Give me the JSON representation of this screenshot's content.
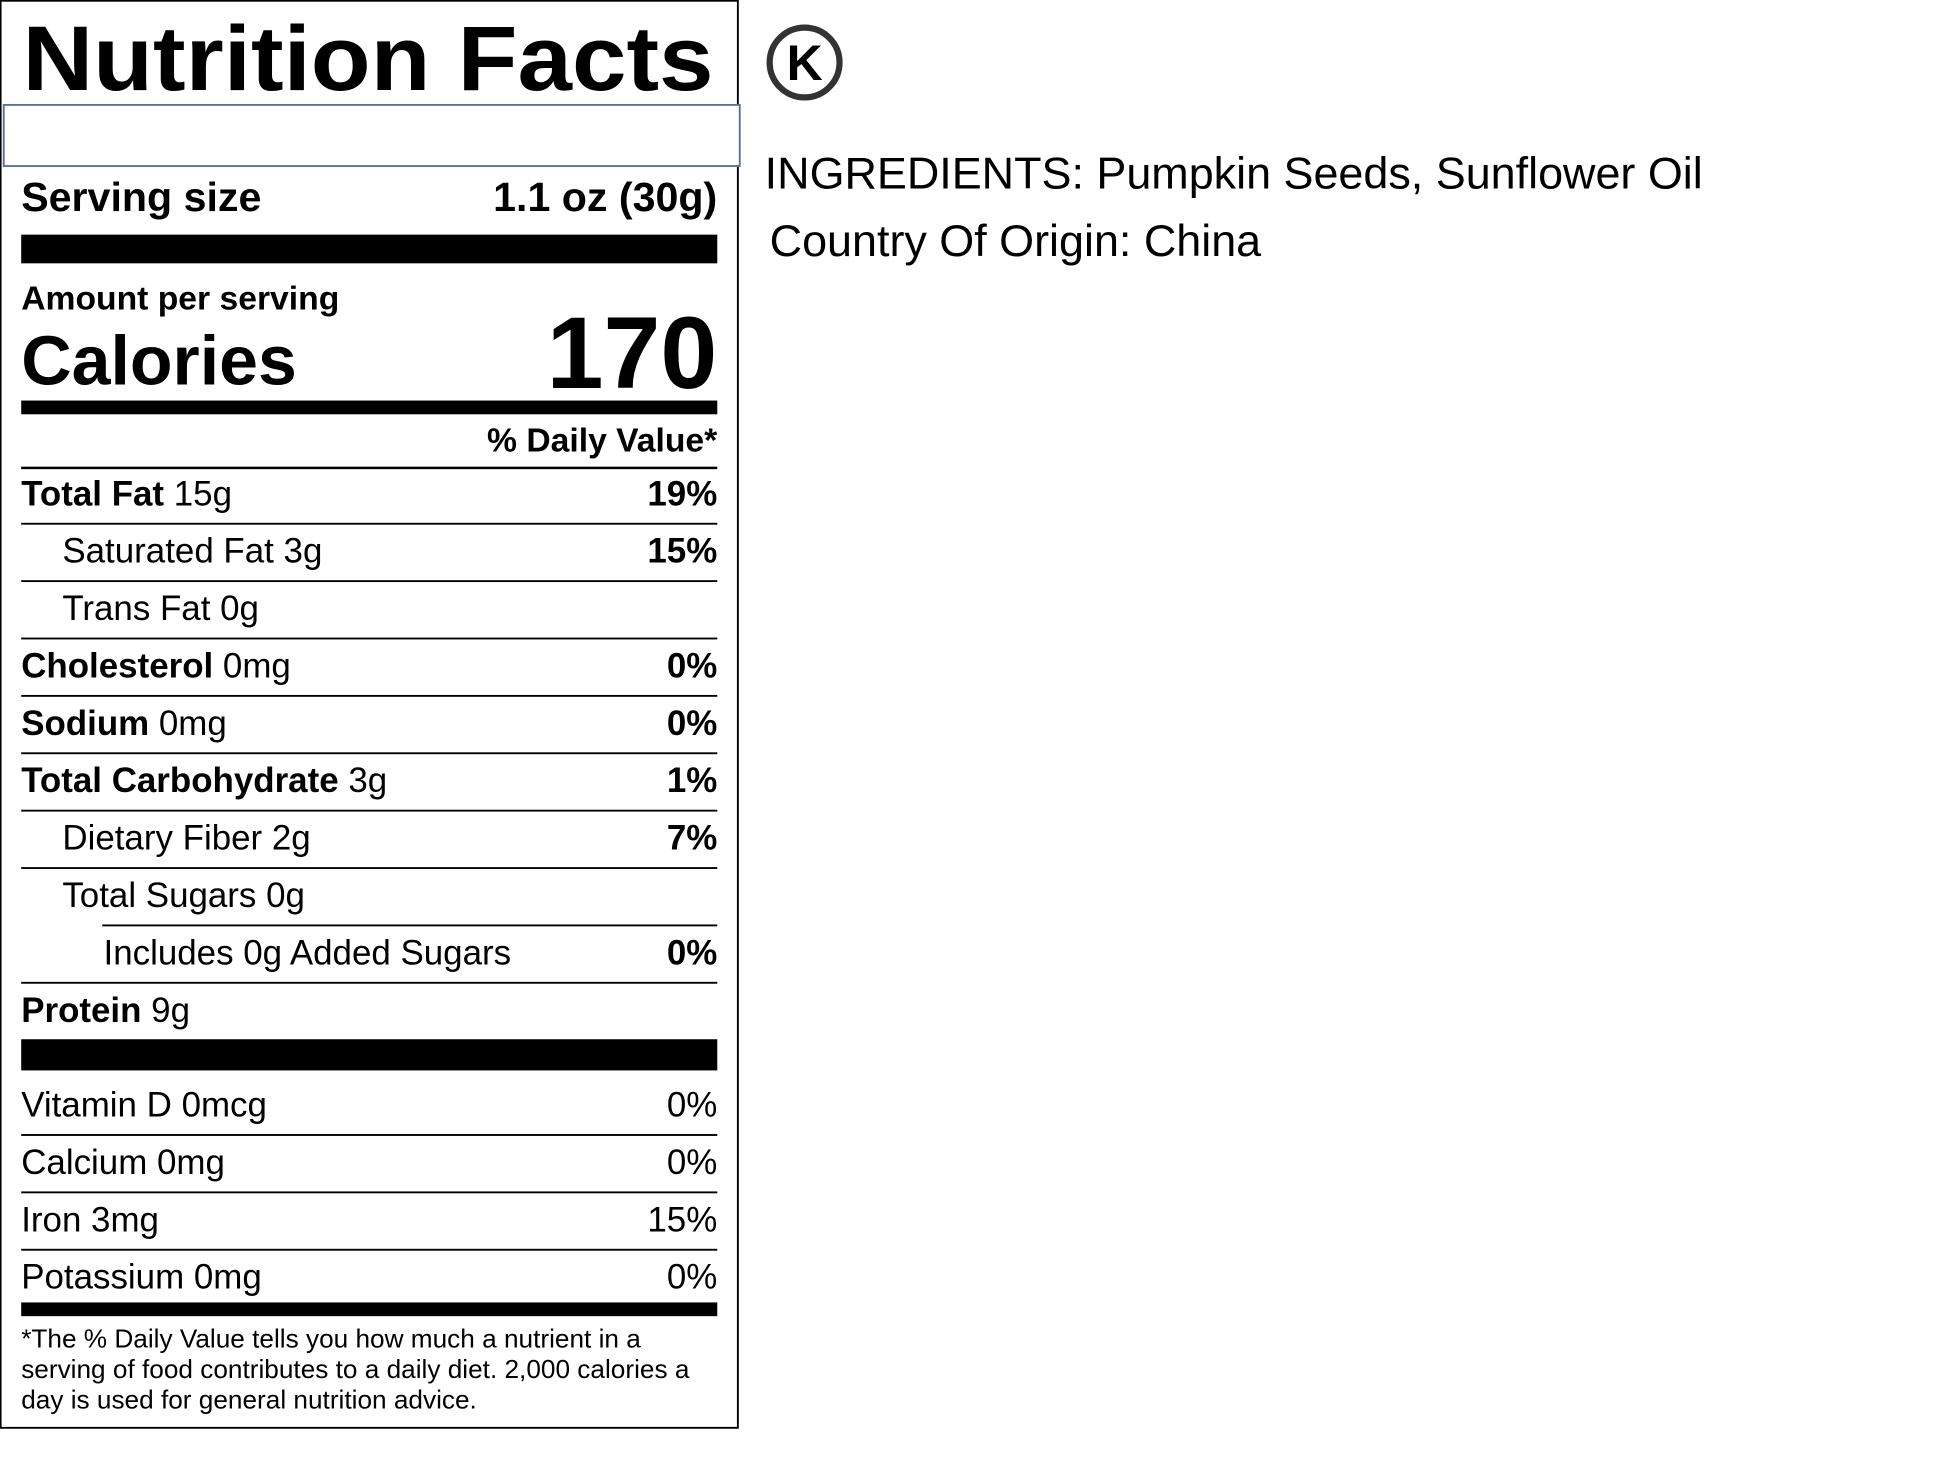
{
  "header": {
    "title": "Nutrition Facts"
  },
  "serving_size": {
    "label": "Serving size",
    "value": "1.1 oz (30g)"
  },
  "calories": {
    "amount_label": "Amount per serving",
    "label": "Calories",
    "value": "170"
  },
  "daily_value_header": "% Daily Value*",
  "nutrients": [
    {
      "name": "Total Fat",
      "amount": "15g",
      "dv": "19%"
    },
    {
      "name": "Saturated Fat 3g",
      "dv": "15%"
    },
    {
      "name": "Trans Fat 0g"
    },
    {
      "name": "Cholesterol",
      "amount": "0mg",
      "dv": "0%"
    },
    {
      "name": "Sodium",
      "amount": "0mg",
      "dv": "0%"
    },
    {
      "name": "Total Carbohydrate",
      "amount": "3g",
      "dv": "1%"
    },
    {
      "name": "Dietary Fiber 2g",
      "dv": "7%"
    },
    {
      "name": "Total Sugars 0g"
    },
    {
      "name": "Includes 0g Added Sugars",
      "dv": "0%"
    },
    {
      "name": "Protein",
      "amount": "9g"
    }
  ],
  "vitamins": [
    {
      "name": "Vitamin D 0mcg",
      "dv": "0%"
    },
    {
      "name": "Calcium 0mg",
      "dv": "0%"
    },
    {
      "name": "Iron 3mg",
      "dv": "15%"
    },
    {
      "name": "Potassium 0mg",
      "dv": "0%"
    }
  ],
  "footnote": [
    "*The % Daily Value tells you how much a nutrient in a",
    "serving of food contributes to a daily diet. 2,000 calories a",
    "day is used for general nutrition advice."
  ],
  "kosher_symbol": "K",
  "ingredients": "INGREDIENTS: Pumpkin Seeds, Sunflower Oil",
  "origin": "Country Of Origin: China"
}
